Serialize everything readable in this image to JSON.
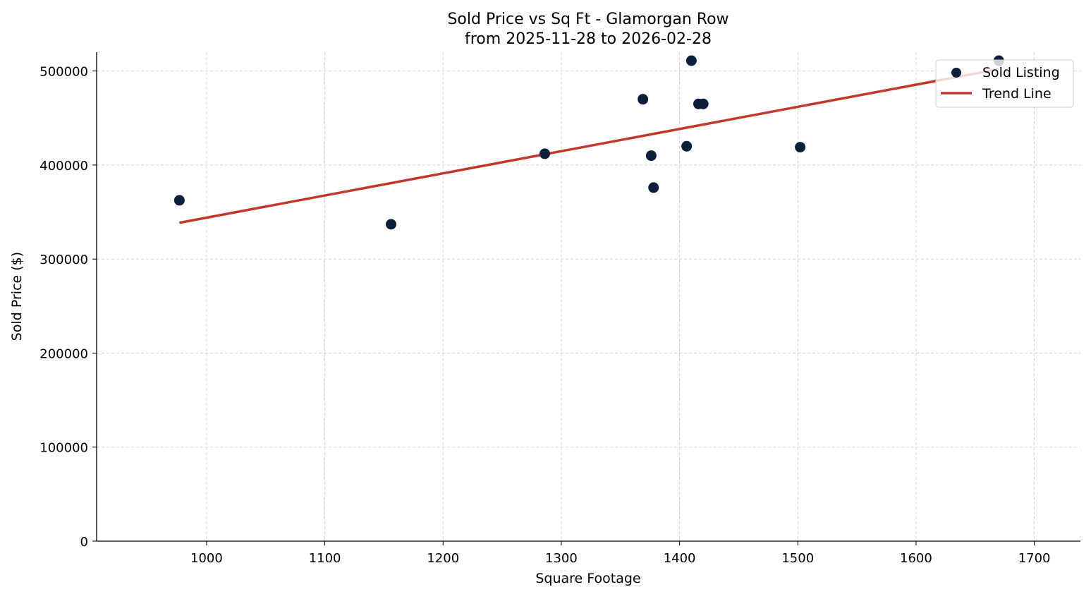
{
  "chart_data": {
    "type": "scatter",
    "title": "Sold Price vs Sq Ft - Glamorgan Row",
    "subtitle": "from 2025-11-28 to 2026-02-28",
    "xlabel": "Square Footage",
    "ylabel": "Sold Price ($)",
    "xlim": [
      907,
      1739
    ],
    "ylim": [
      0,
      520000
    ],
    "xticks": [
      1000,
      1100,
      1200,
      1300,
      1400,
      1500,
      1600,
      1700
    ],
    "yticks": [
      0,
      100000,
      200000,
      300000,
      400000,
      500000
    ],
    "grid": true,
    "legend_position": "top-right",
    "series": [
      {
        "name": "Sold Listing",
        "kind": "scatter",
        "color": "#0b1f3a",
        "x": [
          977,
          1156,
          1286,
          1369,
          1376,
          1378,
          1406,
          1410,
          1416,
          1420,
          1502,
          1670
        ],
        "y": [
          362500,
          337000,
          412000,
          470000,
          410000,
          376000,
          420000,
          511000,
          465000,
          465000,
          419000,
          511000
        ]
      },
      {
        "name": "Trend Line",
        "kind": "line",
        "color": "#c0392b",
        "x": [
          977,
          1670
        ],
        "y": [
          338600,
          502000
        ]
      }
    ]
  }
}
